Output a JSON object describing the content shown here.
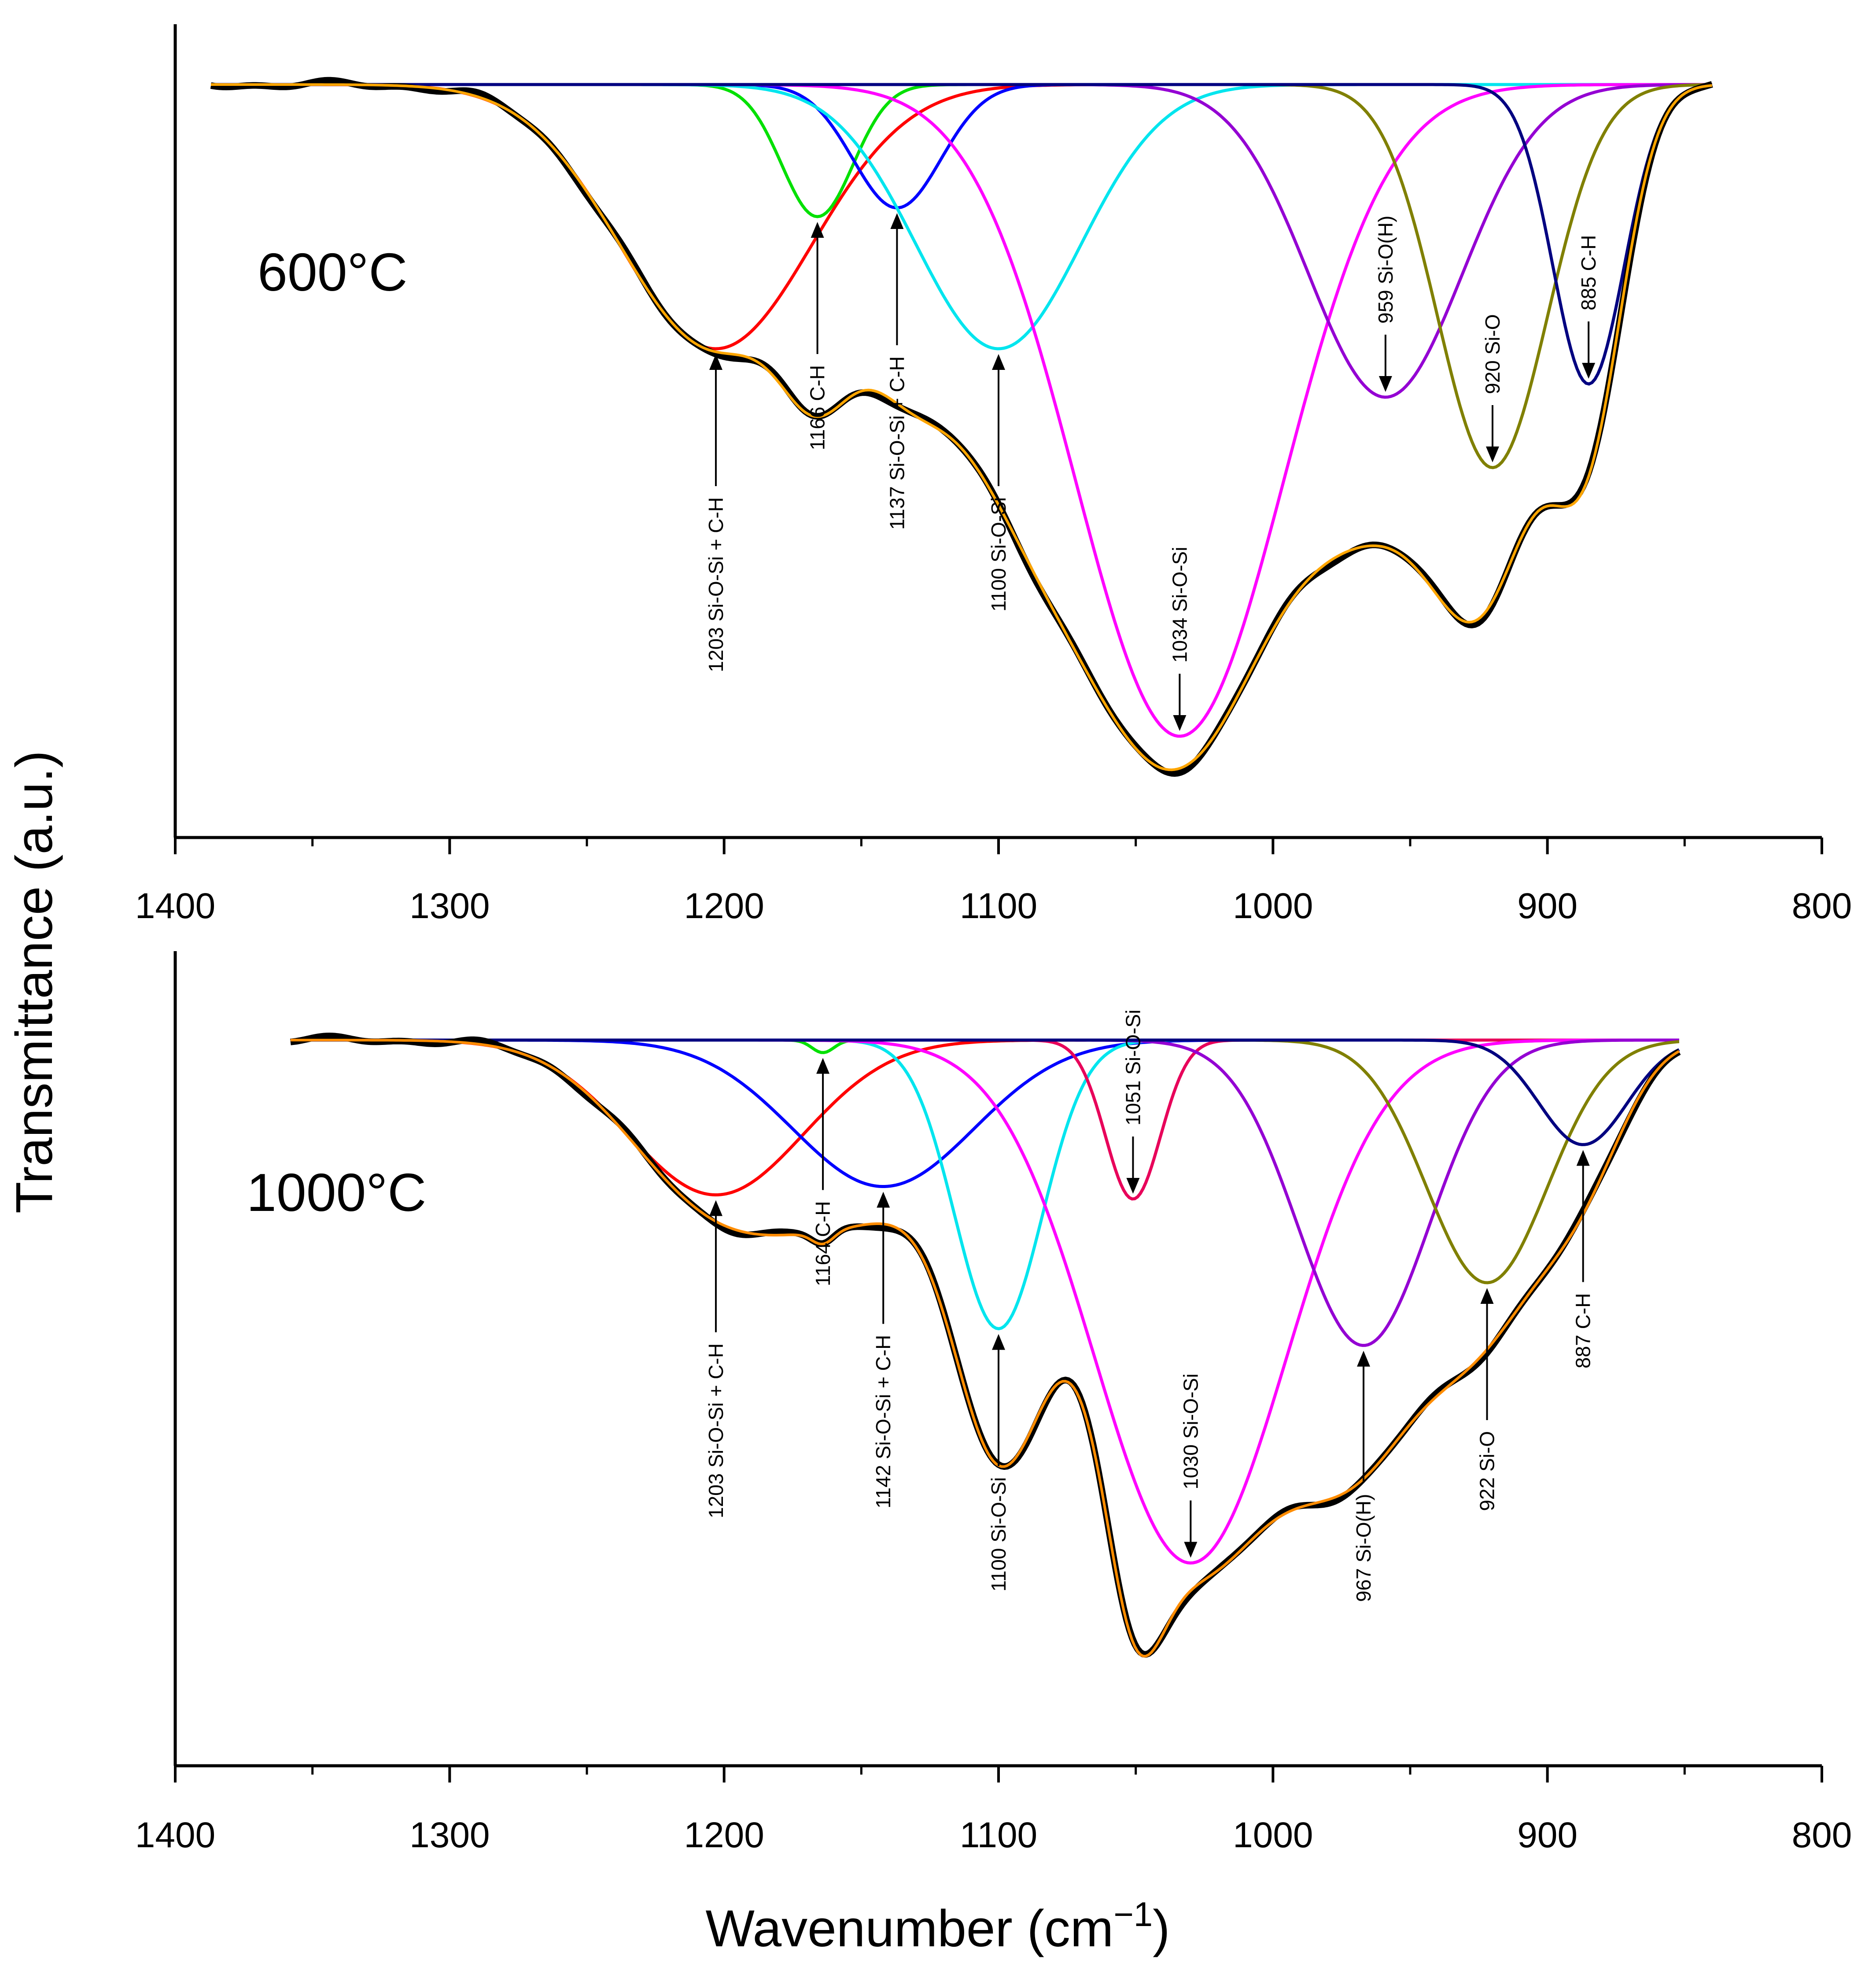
{
  "chart_data": {
    "type": "line",
    "ylabel": "Transmittance (a.u.)",
    "xlabel": "Wavenumber (cm",
    "xlabel_exp": "−1",
    "xlabel_close": ")",
    "xlim": [
      1400,
      800
    ],
    "xticks": [
      1400,
      1300,
      1200,
      1100,
      1000,
      900,
      800
    ],
    "colors": {
      "measured": "#000000",
      "fit": "#ffa500",
      "fit_1000": "#ff8c00"
    },
    "panels": [
      {
        "label": "600°C",
        "xrange": [
          1387,
          840
        ],
        "baseline": 0.0,
        "peaks": [
          {
            "center": 1203,
            "width": 35,
            "depth": 0.6,
            "color": "#ff0000",
            "label": "1203 Si-O-Si + C-H",
            "label_pos": "below"
          },
          {
            "center": 1166,
            "width": 13,
            "depth": 0.3,
            "color": "#00e000",
            "label": "1166 C-H",
            "label_pos": "below"
          },
          {
            "center": 1137,
            "width": 16,
            "depth": 0.28,
            "color": "#0000ff",
            "label": "1137 Si-O-Si + C-H",
            "label_pos": "below"
          },
          {
            "center": 1100,
            "width": 30,
            "depth": 0.6,
            "color": "#00e5ee",
            "label": "1100 Si-O-Si",
            "label_pos": "below"
          },
          {
            "center": 1034,
            "width": 38,
            "depth": 1.48,
            "color": "#ff00ff",
            "label": "1034 Si-O-Si",
            "label_pos": "above"
          },
          {
            "center": 959,
            "width": 28,
            "depth": 0.71,
            "color": "#9400d3",
            "label": "959 Si-O(H)",
            "label_pos": "above"
          },
          {
            "center": 920,
            "width": 20,
            "depth": 0.87,
            "color": "#808000",
            "label": "920 Si-O",
            "label_pos": "above"
          },
          {
            "center": 885,
            "width": 13,
            "depth": 0.68,
            "color": "#000080",
            "label": "885 C-H",
            "label_pos": "above"
          }
        ]
      },
      {
        "label": "1000°C",
        "xrange": [
          1358,
          852
        ],
        "baseline": 0.0,
        "peaks": [
          {
            "center": 1203,
            "width": 32,
            "depth": 0.37,
            "color": "#ff0000",
            "label": "1203 Si-O-Si + C-H",
            "label_pos": "below"
          },
          {
            "center": 1164,
            "width": 4,
            "depth": 0.03,
            "color": "#00e000",
            "label": "1164 C-H",
            "label_pos": "below"
          },
          {
            "center": 1142,
            "width": 33,
            "depth": 0.35,
            "color": "#0000ff",
            "label": "1142 Si-O-Si + C-H",
            "label_pos": "below"
          },
          {
            "center": 1100,
            "width": 16,
            "depth": 0.69,
            "color": "#00e5ee",
            "label": "1100 Si-O-Si",
            "label_pos": "below"
          },
          {
            "center": 1051,
            "width": 10,
            "depth": 0.38,
            "color": "#e8005a",
            "label": "1051 Si-O-Si",
            "label_pos": "above"
          },
          {
            "center": 1030,
            "width": 35,
            "depth": 1.25,
            "color": "#ff00ff",
            "label": "1030 Si-O-Si",
            "label_pos": "above"
          },
          {
            "center": 967,
            "width": 24,
            "depth": 0.73,
            "color": "#9400d3",
            "label": "967 Si-O(H)",
            "label_pos": "below"
          },
          {
            "center": 922,
            "width": 22,
            "depth": 0.58,
            "color": "#808000",
            "label": "922 Si-O",
            "label_pos": "below"
          },
          {
            "center": 887,
            "width": 16,
            "depth": 0.25,
            "color": "#000080",
            "label": "887 C-H",
            "label_pos": "below"
          }
        ]
      }
    ]
  }
}
